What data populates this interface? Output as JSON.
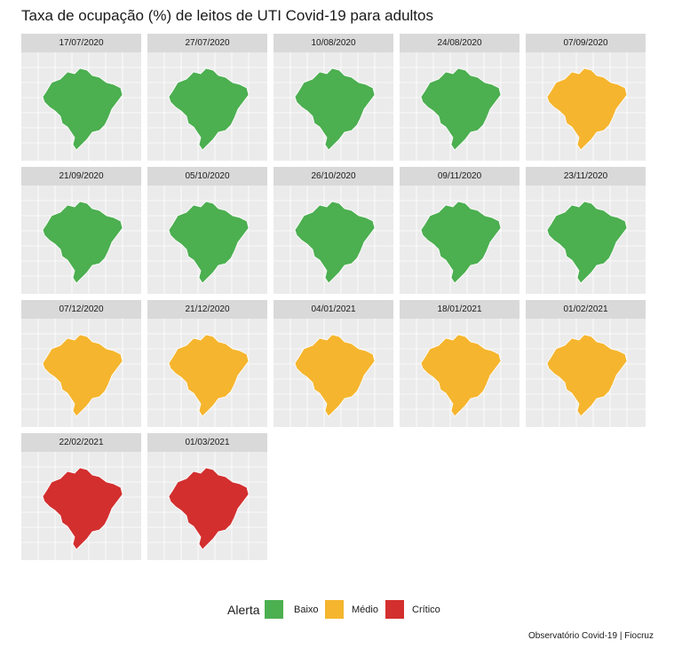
{
  "title": "Taxa de ocupação (%) de leitos de UTI Covid-19 para adultos",
  "caption": "Observatório Covid-19 | Fiocruz",
  "chart_data": {
    "type": "choropleth-map-grid",
    "legend": {
      "title": "Alerta",
      "placement": "bottom",
      "categories": [
        {
          "label": "Baixo",
          "color": "#4caf50"
        },
        {
          "label": "Médio",
          "color": "#f5b52e"
        },
        {
          "label": "Crítico",
          "color": "#d32f2f"
        }
      ]
    },
    "panels": [
      {
        "date": "17/07/2020",
        "dominant": "Baixo"
      },
      {
        "date": "27/07/2020",
        "dominant": "Baixo"
      },
      {
        "date": "10/08/2020",
        "dominant": "Baixo"
      },
      {
        "date": "24/08/2020",
        "dominant": "Baixo"
      },
      {
        "date": "07/09/2020",
        "dominant": "Médio"
      },
      {
        "date": "21/09/2020",
        "dominant": "Baixo"
      },
      {
        "date": "05/10/2020",
        "dominant": "Baixo"
      },
      {
        "date": "26/10/2020",
        "dominant": "Baixo"
      },
      {
        "date": "09/11/2020",
        "dominant": "Baixo"
      },
      {
        "date": "23/11/2020",
        "dominant": "Baixo"
      },
      {
        "date": "07/12/2020",
        "dominant": "Médio"
      },
      {
        "date": "21/12/2020",
        "dominant": "Médio"
      },
      {
        "date": "04/01/2021",
        "dominant": "Médio"
      },
      {
        "date": "18/01/2021",
        "dominant": "Médio"
      },
      {
        "date": "01/02/2021",
        "dominant": "Médio"
      },
      {
        "date": "22/02/2021",
        "dominant": "Crítico"
      },
      {
        "date": "01/03/2021",
        "dominant": "Crítico"
      }
    ]
  }
}
